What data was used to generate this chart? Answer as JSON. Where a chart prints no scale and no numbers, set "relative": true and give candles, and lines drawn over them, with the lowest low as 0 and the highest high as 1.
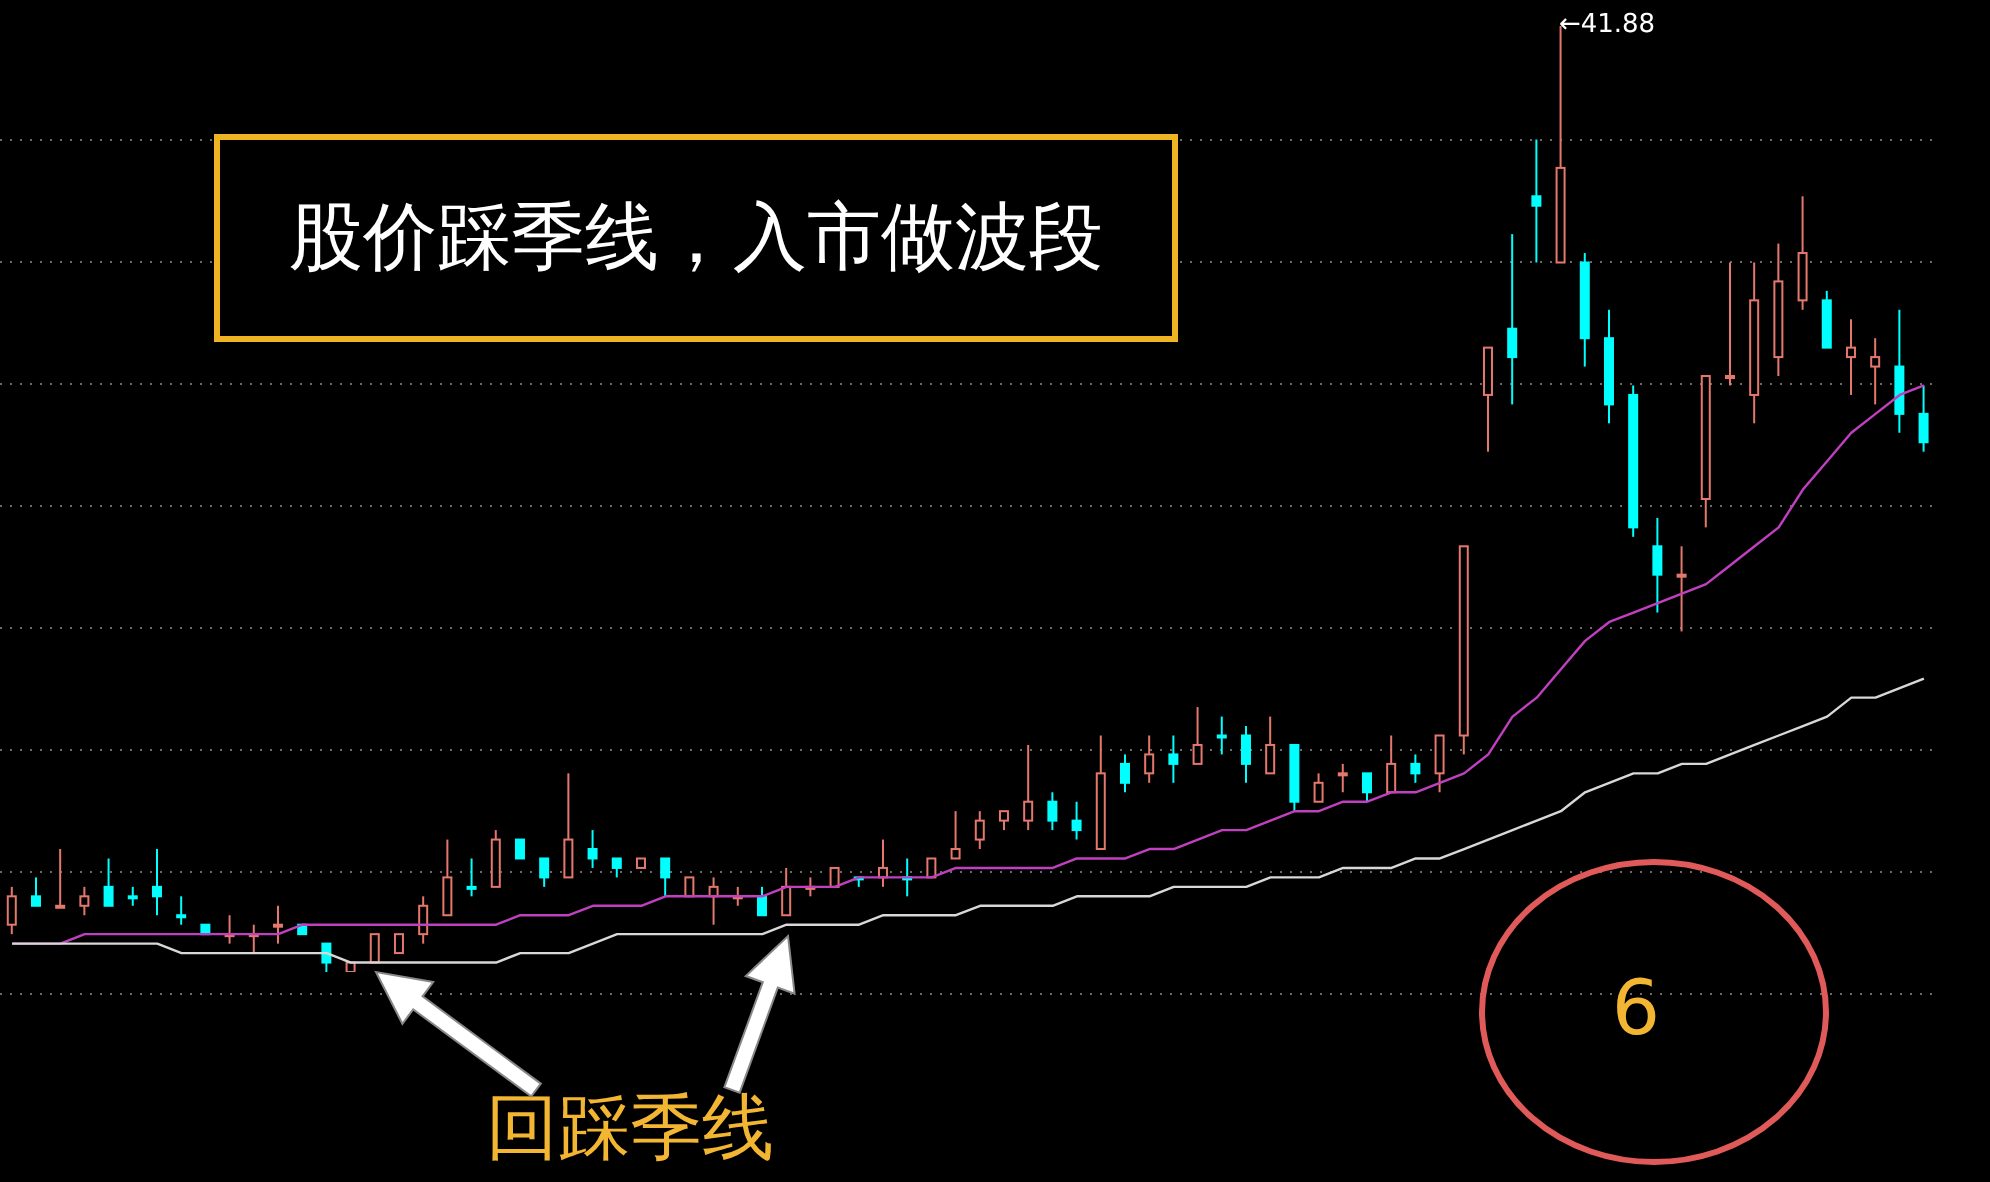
{
  "chart_data": {
    "type": "candlestick",
    "title": "股价踩季线，入市做波段",
    "relative": true,
    "grid": "y",
    "categories": [
      null,
      null,
      null,
      null,
      null,
      null,
      null,
      null,
      null,
      null,
      null,
      null,
      null,
      null,
      null,
      null,
      null,
      null,
      null,
      null,
      null,
      null,
      null,
      null,
      null,
      null,
      null,
      null,
      null,
      null,
      null,
      null,
      null,
      null,
      null,
      null,
      null,
      null,
      null,
      null,
      null,
      null,
      null,
      null,
      null,
      null,
      null,
      null,
      null,
      null,
      null,
      null,
      null,
      null,
      null,
      null,
      null,
      null,
      null,
      null,
      null,
      null,
      null,
      null,
      null,
      null,
      null,
      null,
      null,
      null,
      null,
      null,
      null,
      null,
      null,
      null,
      null,
      null,
      null,
      null
    ],
    "ohlc": [
      [
        0.05,
        0.09,
        0.04,
        0.08
      ],
      [
        0.08,
        0.1,
        0.07,
        0.07
      ],
      [
        0.07,
        0.13,
        0.07,
        0.07
      ],
      [
        0.07,
        0.09,
        0.06,
        0.08
      ],
      [
        0.09,
        0.12,
        0.07,
        0.07
      ],
      [
        0.08,
        0.09,
        0.07,
        0.08
      ],
      [
        0.09,
        0.13,
        0.06,
        0.08
      ],
      [
        0.06,
        0.08,
        0.05,
        0.06
      ],
      [
        0.05,
        0.05,
        0.04,
        0.04
      ],
      [
        0.04,
        0.06,
        0.03,
        0.04
      ],
      [
        0.04,
        0.05,
        0.02,
        0.04
      ],
      [
        0.05,
        0.07,
        0.03,
        0.05
      ],
      [
        0.05,
        0.05,
        0.04,
        0.04
      ],
      [
        0.03,
        0.03,
        0,
        0.01
      ],
      [
        0,
        0.01,
        0,
        0.01
      ],
      [
        0.01,
        0.04,
        0.01,
        0.04
      ],
      [
        0.02,
        0.04,
        0.02,
        0.04
      ],
      [
        0.04,
        0.08,
        0.03,
        0.07
      ],
      [
        0.06,
        0.14,
        0.06,
        0.1
      ],
      [
        0.09,
        0.12,
        0.08,
        0.09
      ],
      [
        0.09,
        0.15,
        0.09,
        0.14
      ],
      [
        0.14,
        0.14,
        0.12,
        0.12
      ],
      [
        0.12,
        0.12,
        0.09,
        0.1
      ],
      [
        0.1,
        0.21,
        0.1,
        0.14
      ],
      [
        0.13,
        0.15,
        0.11,
        0.12
      ],
      [
        0.12,
        0.12,
        0.1,
        0.11
      ],
      [
        0.11,
        0.12,
        0.11,
        0.12
      ],
      [
        0.12,
        0.12,
        0.08,
        0.1
      ],
      [
        0.08,
        0.1,
        0.08,
        0.1
      ],
      [
        0.08,
        0.1,
        0.05,
        0.09
      ],
      [
        0.08,
        0.09,
        0.07,
        0.08
      ],
      [
        0.08,
        0.09,
        0.06,
        0.06
      ],
      [
        0.06,
        0.11,
        0.06,
        0.09
      ],
      [
        0.09,
        0.1,
        0.08,
        0.09
      ],
      [
        0.09,
        0.11,
        0.09,
        0.11
      ],
      [
        0.1,
        0.1,
        0.09,
        0.1
      ],
      [
        0.1,
        0.14,
        0.09,
        0.11
      ],
      [
        0.1,
        0.12,
        0.08,
        0.1
      ],
      [
        0.1,
        0.12,
        0.1,
        0.12
      ],
      [
        0.12,
        0.17,
        0.12,
        0.13
      ],
      [
        0.14,
        0.17,
        0.13,
        0.16
      ],
      [
        0.16,
        0.17,
        0.15,
        0.17
      ],
      [
        0.16,
        0.24,
        0.15,
        0.18
      ],
      [
        0.18,
        0.19,
        0.15,
        0.16
      ],
      [
        0.16,
        0.18,
        0.14,
        0.15
      ],
      [
        0.13,
        0.25,
        0.13,
        0.21
      ],
      [
        0.22,
        0.23,
        0.19,
        0.2
      ],
      [
        0.21,
        0.25,
        0.2,
        0.23
      ],
      [
        0.23,
        0.25,
        0.2,
        0.22
      ],
      [
        0.22,
        0.28,
        0.22,
        0.24
      ],
      [
        0.25,
        0.27,
        0.23,
        0.25
      ],
      [
        0.25,
        0.26,
        0.2,
        0.22
      ],
      [
        0.21,
        0.27,
        0.21,
        0.24
      ],
      [
        0.24,
        0.24,
        0.17,
        0.18
      ],
      [
        0.18,
        0.21,
        0.18,
        0.2
      ],
      [
        0.21,
        0.22,
        0.19,
        0.21
      ],
      [
        0.21,
        0.21,
        0.18,
        0.19
      ],
      [
        0.19,
        0.25,
        0.19,
        0.22
      ],
      [
        0.22,
        0.23,
        0.2,
        0.21
      ],
      [
        0.21,
        0.25,
        0.19,
        0.25
      ],
      [
        0.25,
        0.45,
        0.23,
        0.45
      ],
      [
        0.61,
        0.66,
        0.55,
        0.66
      ],
      [
        0.68,
        0.78,
        0.6,
        0.65
      ],
      [
        0.82,
        0.88,
        0.75,
        0.81
      ],
      [
        0.75,
        1,
        0.75,
        0.85
      ],
      [
        0.75,
        0.76,
        0.64,
        0.67
      ],
      [
        0.67,
        0.7,
        0.58,
        0.6
      ],
      [
        0.61,
        0.62,
        0.46,
        0.47
      ],
      [
        0.45,
        0.48,
        0.38,
        0.42
      ],
      [
        0.42,
        0.45,
        0.36,
        0.42
      ],
      [
        0.5,
        0.63,
        0.47,
        0.63
      ],
      [
        0.63,
        0.75,
        0.62,
        0.63
      ],
      [
        0.61,
        0.75,
        0.58,
        0.71
      ],
      [
        0.65,
        0.77,
        0.63,
        0.73
      ],
      [
        0.71,
        0.82,
        0.7,
        0.76
      ],
      [
        0.71,
        0.72,
        0.66,
        0.66
      ],
      [
        0.65,
        0.69,
        0.61,
        0.66
      ],
      [
        0.64,
        0.67,
        0.6,
        0.65
      ],
      [
        0.64,
        0.7,
        0.57,
        0.59
      ],
      [
        0.59,
        0.62,
        0.55,
        0.56
      ]
    ],
    "colors": [
      "#e5786d",
      "#00ffff",
      "#e5786d",
      "#e5786d",
      "#00ffff",
      "#00ffff",
      "#00ffff",
      "#00ffff",
      "#00ffff",
      "#e5786d",
      "#e5786d",
      "#e5786d",
      "#00ffff",
      "#00ffff",
      "#e5786d",
      "#e5786d",
      "#e5786d",
      "#e5786d",
      "#e5786d",
      "#00ffff",
      "#e5786d",
      "#00ffff",
      "#00ffff",
      "#e5786d",
      "#00ffff",
      "#00ffff",
      "#e5786d",
      "#00ffff",
      "#e5786d",
      "#e5786d",
      "#e5786d",
      "#00ffff",
      "#e5786d",
      "#e5786d",
      "#e5786d",
      "#00ffff",
      "#e5786d",
      "#00ffff",
      "#e5786d",
      "#e5786d",
      "#e5786d",
      "#e5786d",
      "#e5786d",
      "#00ffff",
      "#00ffff",
      "#e5786d",
      "#00ffff",
      "#e5786d",
      "#00ffff",
      "#e5786d",
      "#00ffff",
      "#00ffff",
      "#e5786d",
      "#00ffff",
      "#e5786d",
      "#e5786d",
      "#00ffff",
      "#e5786d",
      "#00ffff",
      "#e5786d",
      "#e5786d",
      "#e5786d",
      "#00ffff",
      "#00ffff",
      "#e5786d",
      "#00ffff",
      "#00ffff",
      "#00ffff",
      "#00ffff",
      "#e5786d",
      "#e5786d",
      "#e5786d",
      "#e5786d",
      "#e5786d",
      "#e5786d",
      "#00ffff",
      "#e5786d",
      "#e5786d",
      "#00ffff",
      "#00ffff"
    ],
    "series": [
      {
        "type": "line",
        "color": "#c040c0",
        "values": [
          0.03,
          0.03,
          0.03,
          0.04,
          0.04,
          0.04,
          0.04,
          0.04,
          0.04,
          0.04,
          0.04,
          0.04,
          0.05,
          0.05,
          0.05,
          0.05,
          0.05,
          0.05,
          0.05,
          0.05,
          0.05,
          0.06,
          0.06,
          0.06,
          0.07,
          0.07,
          0.07,
          0.08,
          0.08,
          0.08,
          0.08,
          0.08,
          0.09,
          0.09,
          0.09,
          0.1,
          0.1,
          0.1,
          0.1,
          0.11,
          0.11,
          0.11,
          0.11,
          0.11,
          0.12,
          0.12,
          0.12,
          0.13,
          0.13,
          0.14,
          0.15,
          0.15,
          0.16,
          0.17,
          0.17,
          0.18,
          0.18,
          0.19,
          0.19,
          0.2,
          0.21,
          0.23,
          0.27,
          0.29,
          0.32,
          0.35,
          0.37,
          0.38,
          0.39,
          0.4,
          0.41,
          0.43,
          0.45,
          0.47,
          0.51,
          0.54,
          0.57,
          0.59,
          0.61,
          0.62
        ]
      },
      {
        "type": "line",
        "color": "#d8d8d8",
        "values": [
          0.03,
          0.03,
          0.03,
          0.03,
          0.03,
          0.03,
          0.03,
          0.02,
          0.02,
          0.02,
          0.02,
          0.02,
          0.02,
          0.02,
          0.01,
          0.01,
          0.01,
          0.01,
          0.01,
          0.01,
          0.01,
          0.02,
          0.02,
          0.02,
          0.03,
          0.04,
          0.04,
          0.04,
          0.04,
          0.04,
          0.04,
          0.04,
          0.05,
          0.05,
          0.05,
          0.05,
          0.06,
          0.06,
          0.06,
          0.06,
          0.07,
          0.07,
          0.07,
          0.07,
          0.08,
          0.08,
          0.08,
          0.08,
          0.09,
          0.09,
          0.09,
          0.09,
          0.1,
          0.1,
          0.1,
          0.11,
          0.11,
          0.11,
          0.12,
          0.12,
          0.13,
          0.14,
          0.15,
          0.16,
          0.17,
          0.19,
          0.2,
          0.21,
          0.21,
          0.22,
          0.22,
          0.23,
          0.24,
          0.25,
          0.26,
          0.27,
          0.29,
          0.29,
          0.3,
          0.31
        ]
      }
    ],
    "annotations": [
      "←41.88",
      "回踩季线",
      "6"
    ]
  }
}
